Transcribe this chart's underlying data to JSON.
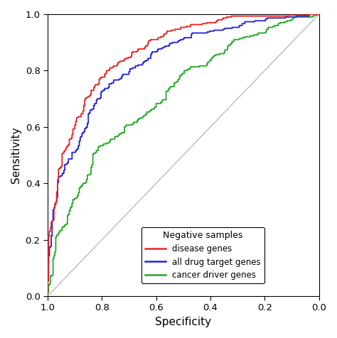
{
  "xlabel": "Specificity",
  "ylabel": "Sensitivity",
  "xlim": [
    1.0,
    0.0
  ],
  "ylim": [
    0.0,
    1.0
  ],
  "xticks": [
    1.0,
    0.8,
    0.6,
    0.4,
    0.2,
    0.0
  ],
  "yticks": [
    0.0,
    0.2,
    0.4,
    0.6,
    0.8,
    1.0
  ],
  "diagonal_color": "#bbbbbb",
  "legend_title": "Negative samples",
  "legend_labels": [
    "disease genes",
    "all drug target genes",
    "cancer driver genes"
  ],
  "curve_colors": [
    "#ee2222",
    "#2222dd",
    "#22aa22"
  ],
  "background_color": "#ffffff",
  "line_width": 1.3
}
